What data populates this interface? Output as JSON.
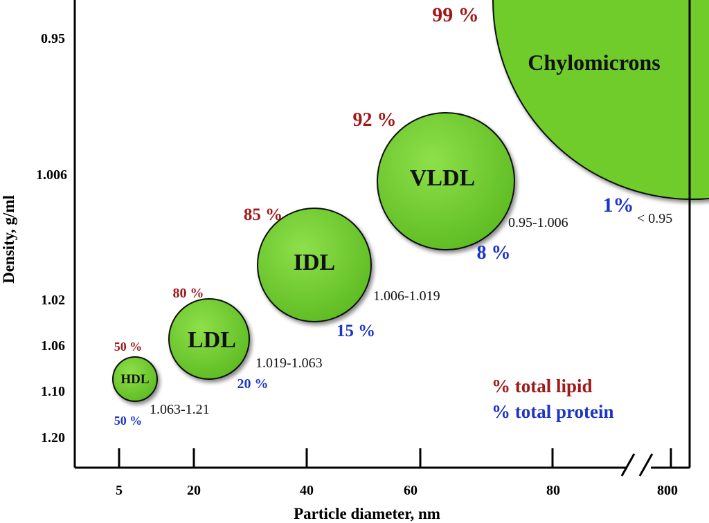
{
  "chart_data": {
    "type": "scatter",
    "xlabel": "Particle diameter, nm",
    "ylabel": "Density, g/ml",
    "x_ticks": [
      "5",
      "20",
      "40",
      "60",
      "80",
      "800"
    ],
    "y_ticks": [
      "0.95",
      "1.006",
      "1.02",
      "1.06",
      "1.10",
      "1.20"
    ],
    "axis_break": "x between 80 and 800",
    "legend": {
      "placement": "bottom-right",
      "items": [
        {
          "label": "% total lipid",
          "color": "#a01818"
        },
        {
          "label": "% total protein",
          "color": "#1c34c8"
        }
      ]
    },
    "series": [
      {
        "name": "HDL",
        "diameter_nm": 7,
        "density_range": "1.063-1.21",
        "lipid_pct": "50 %",
        "protein_pct": "50 %"
      },
      {
        "name": "LDL",
        "diameter_nm": 22,
        "density_range": "1.019-1.063",
        "lipid_pct": "80 %",
        "protein_pct": "20 %"
      },
      {
        "name": "IDL",
        "diameter_nm": 41,
        "density_range": "1.006-1.019",
        "lipid_pct": "85 %",
        "protein_pct": "15 %"
      },
      {
        "name": "VLDL",
        "diameter_nm": 64,
        "density_range": "0.95-1.006",
        "lipid_pct": "92 %",
        "protein_pct": "8 %"
      },
      {
        "name": "Chylomicrons",
        "diameter_nm": 800,
        "density_range": "< 0.95",
        "lipid_pct": "99 %",
        "protein_pct": "1%"
      }
    ]
  },
  "colors": {
    "bubble_fill": "#6fcc2c",
    "bubble_stroke": "#111111",
    "lipid": "#a01818",
    "protein": "#1c34c8",
    "axis": "#000000"
  }
}
